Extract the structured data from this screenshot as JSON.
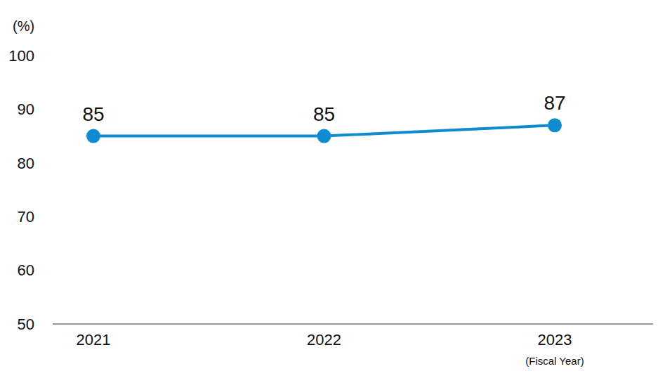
{
  "chart_data": {
    "type": "line",
    "categories": [
      "2021",
      "2022",
      "2023"
    ],
    "values": [
      85,
      85,
      87
    ],
    "color": "#0f8bd0",
    "ylim": [
      50,
      100
    ],
    "yticks": [
      50,
      60,
      70,
      80,
      90,
      100
    ],
    "y_label": "(%)",
    "x_label": "(Fiscal Year)",
    "data_labels": true,
    "grid": false,
    "marker": "circle"
  }
}
